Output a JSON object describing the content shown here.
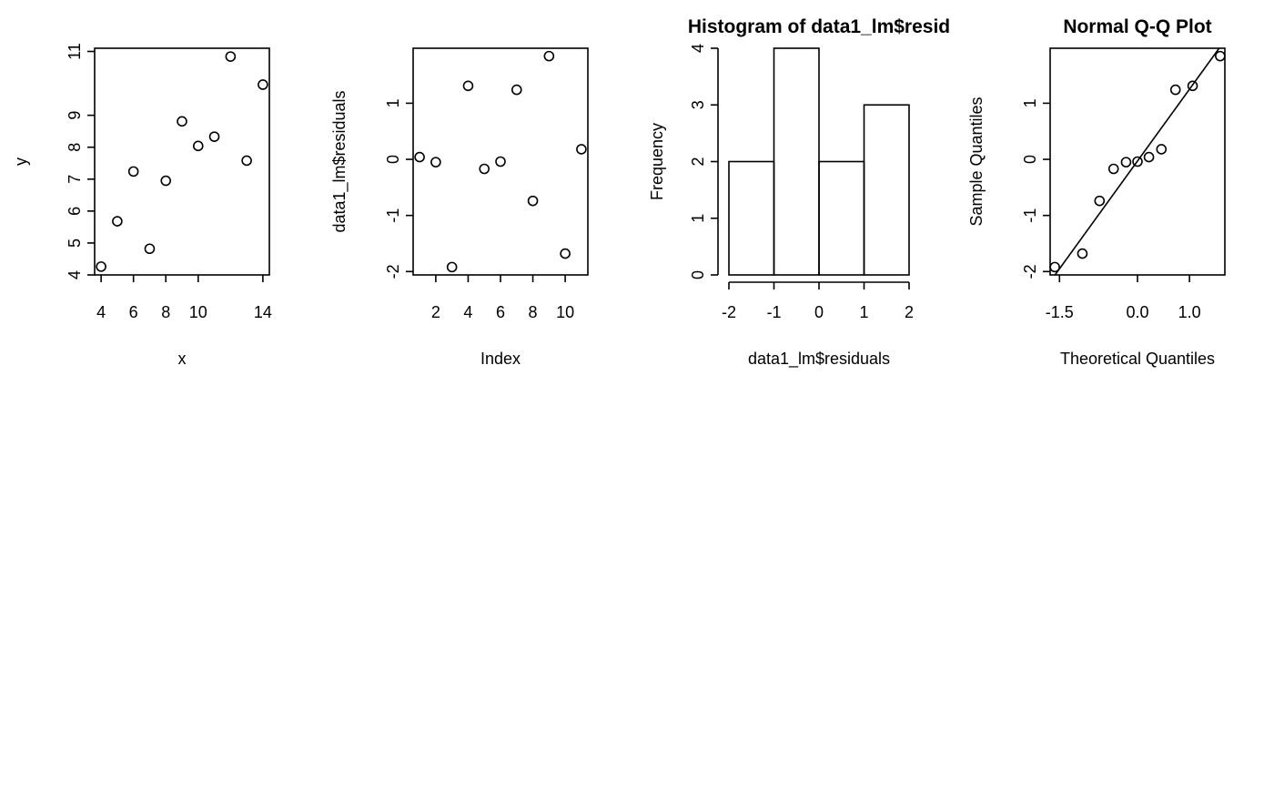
{
  "chart_data": [
    {
      "type": "scatter",
      "title": "",
      "xlabel": "x",
      "ylabel": "y",
      "xlim": [
        3.6,
        14.4
      ],
      "ylim": [
        4.0,
        11.1
      ],
      "xticks": [
        4,
        6,
        8,
        10,
        14
      ],
      "yticks": [
        4,
        5,
        6,
        7,
        8,
        9,
        11
      ],
      "x": [
        4,
        5,
        6,
        7,
        8,
        9,
        10,
        11,
        12,
        13,
        14
      ],
      "y": [
        4.26,
        5.68,
        7.24,
        4.82,
        6.95,
        8.81,
        8.04,
        8.33,
        10.84,
        7.58,
        9.96
      ]
    },
    {
      "type": "scatter",
      "title": "",
      "xlabel": "Index",
      "ylabel": "data1_lm$residuals",
      "xlim": [
        0.6,
        11.4
      ],
      "ylim": [
        -2.06,
        1.98
      ],
      "xticks": [
        2,
        4,
        6,
        8,
        10
      ],
      "yticks": [
        -2,
        -1,
        0,
        1
      ],
      "x": [
        1,
        2,
        3,
        4,
        5,
        6,
        7,
        8,
        9,
        10,
        11
      ],
      "y": [
        0.04,
        -0.05,
        -1.92,
        1.31,
        -0.17,
        -0.04,
        1.24,
        -0.74,
        1.84,
        -1.68,
        0.18
      ]
    },
    {
      "type": "bar",
      "title": "Histogram of data1_lm$resid",
      "xlabel": "data1_lm$residuals",
      "ylabel": "Frequency",
      "xlim": [
        -2,
        2
      ],
      "ylim": [
        0,
        4
      ],
      "xticks": [
        -2,
        -1,
        0,
        1,
        2
      ],
      "yticks": [
        0,
        1,
        2,
        3,
        4
      ],
      "bins": [
        [
          -2,
          -1
        ],
        [
          -1,
          0
        ],
        [
          0,
          1
        ],
        [
          1,
          2
        ]
      ],
      "values": [
        2,
        4,
        2,
        3
      ]
    },
    {
      "type": "scatter",
      "title": "Normal Q-Q Plot",
      "xlabel": "Theoretical Quantiles",
      "ylabel": "Sample Quantiles",
      "xlim": [
        -1.68,
        1.68
      ],
      "ylim": [
        -2.06,
        1.98
      ],
      "xticks": [
        -1.5,
        0.0,
        1.0
      ],
      "xtick_labels": [
        "-1.5",
        "0.0",
        "1.0"
      ],
      "yticks": [
        -2,
        -1,
        0,
        1
      ],
      "x": [
        -1.59,
        -1.06,
        -0.73,
        -0.46,
        -0.22,
        0.0,
        0.22,
        0.46,
        0.73,
        1.06,
        1.59
      ],
      "y": [
        -1.92,
        -1.68,
        -0.74,
        -0.17,
        -0.05,
        -0.04,
        0.04,
        0.18,
        1.24,
        1.31,
        1.84
      ],
      "qq_line": {
        "slope": 1.28,
        "intercept": -0.03
      }
    }
  ]
}
